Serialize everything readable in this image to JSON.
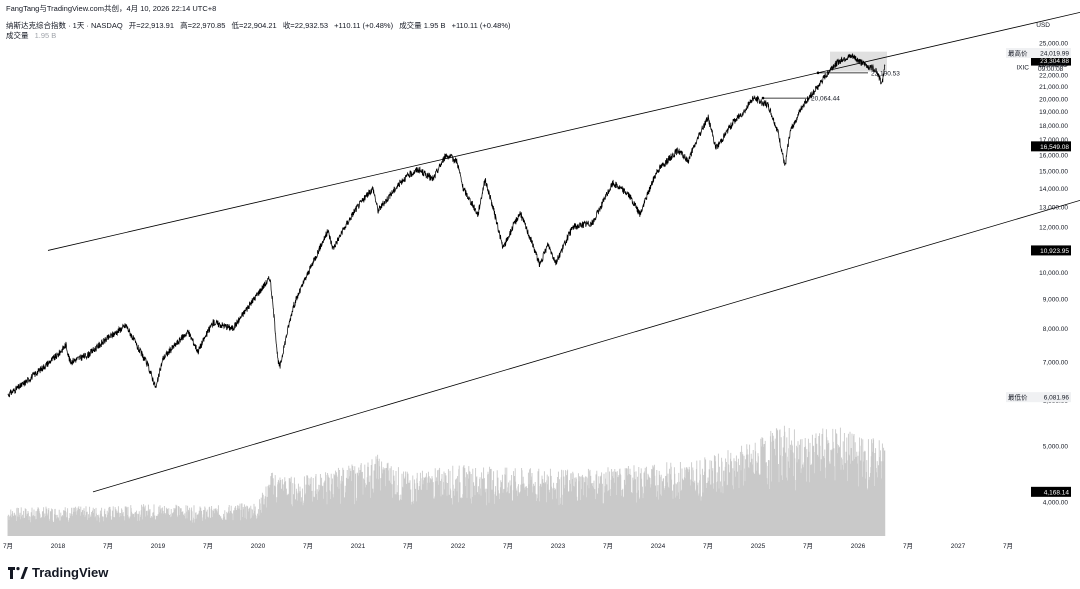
{
  "header": {
    "credit": "FangTang与TradingView.com共创，4月 10, 2026 22:14 UTC+8",
    "symbol_line": "纳斯达克综合指数 · 1天 · NASDAQ",
    "open": "开=22,913.91",
    "high": "高=22,970.85",
    "low": "低=22,904.21",
    "close": "收=22,932.53",
    "change": "+110.11 (+0.48%)",
    "volume_label": "成交量 1.95 B",
    "volume_change": "+110.11 (+0.48%)",
    "vol_row_label": "成交量",
    "vol_row_value": "1.95 B"
  },
  "brand": {
    "name": "TradingView"
  },
  "colors": {
    "price": "#000000",
    "volume": "#c9c9c9",
    "label_bg": "#000000",
    "highlight_box": "#e0e0e0"
  },
  "chart_data": {
    "type": "line",
    "currency": "USD",
    "symbol": "IXIC",
    "ylim": [
      3800,
      25300
    ],
    "y_scale": "log",
    "yticks": [
      4000,
      5000,
      6000,
      7000,
      8000,
      9000,
      10000,
      11000,
      12000,
      13000,
      14000,
      15000,
      16000,
      17000,
      18000,
      19000,
      20000,
      21000,
      22000,
      23000,
      24000,
      25000
    ],
    "ytick_labels": [
      "4,000.00",
      "5,000.00",
      "6,000.00",
      "7,000.00",
      "8,000.00",
      "9,000.00",
      "10,000.00",
      "11,000.00",
      "12,000.00",
      "13,000.00",
      "14,000.00",
      "15,000.00",
      "16,000.00",
      "17,000.00",
      "18,000.00",
      "19,000.00",
      "20,000.00",
      "21,000.00",
      "22,000.00",
      "23,000.00",
      "24,000.00",
      "25,000.00"
    ],
    "xlim": [
      2017.5,
      2027.5
    ],
    "x_ticks": [
      {
        "x": 2017.5,
        "label": "7月"
      },
      {
        "x": 2018.0,
        "label": "2018"
      },
      {
        "x": 2018.5,
        "label": "7月"
      },
      {
        "x": 2019.0,
        "label": "2019"
      },
      {
        "x": 2019.5,
        "label": "7月"
      },
      {
        "x": 2020.0,
        "label": "2020"
      },
      {
        "x": 2020.5,
        "label": "7月"
      },
      {
        "x": 2021.0,
        "label": "2021"
      },
      {
        "x": 2021.5,
        "label": "7月"
      },
      {
        "x": 2022.0,
        "label": "2022"
      },
      {
        "x": 2022.5,
        "label": "7月"
      },
      {
        "x": 2023.0,
        "label": "2023"
      },
      {
        "x": 2023.5,
        "label": "7月"
      },
      {
        "x": 2024.0,
        "label": "2024"
      },
      {
        "x": 2024.5,
        "label": "7月"
      },
      {
        "x": 2025.0,
        "label": "2025"
      },
      {
        "x": 2025.5,
        "label": "7月"
      },
      {
        "x": 2026.0,
        "label": "2026"
      },
      {
        "x": 2026.5,
        "label": "7月"
      },
      {
        "x": 2027.0,
        "label": "2027"
      },
      {
        "x": 2027.5,
        "label": "7月"
      }
    ],
    "series": [
      {
        "points": [
          [
            2017.5,
            6140
          ],
          [
            2017.65,
            6400
          ],
          [
            2017.85,
            6850
          ],
          [
            2018.0,
            7200
          ],
          [
            2018.08,
            7500
          ],
          [
            2018.12,
            7000
          ],
          [
            2018.3,
            7200
          ],
          [
            2018.5,
            7700
          ],
          [
            2018.68,
            8100
          ],
          [
            2018.8,
            7400
          ],
          [
            2018.9,
            6900
          ],
          [
            2018.98,
            6300
          ],
          [
            2019.05,
            7100
          ],
          [
            2019.3,
            7900
          ],
          [
            2019.4,
            7300
          ],
          [
            2019.55,
            8200
          ],
          [
            2019.75,
            8000
          ],
          [
            2019.95,
            8950
          ],
          [
            2020.12,
            9800
          ],
          [
            2020.2,
            7000
          ],
          [
            2020.22,
            6860
          ],
          [
            2020.35,
            8700
          ],
          [
            2020.55,
            10400
          ],
          [
            2020.7,
            11800
          ],
          [
            2020.75,
            11000
          ],
          [
            2020.98,
            12900
          ],
          [
            2021.15,
            14000
          ],
          [
            2021.2,
            12800
          ],
          [
            2021.45,
            14500
          ],
          [
            2021.6,
            15100
          ],
          [
            2021.75,
            14500
          ],
          [
            2021.88,
            16000
          ],
          [
            2021.99,
            15600
          ],
          [
            2022.05,
            14000
          ],
          [
            2022.2,
            12600
          ],
          [
            2022.27,
            14500
          ],
          [
            2022.45,
            11000
          ],
          [
            2022.62,
            12700
          ],
          [
            2022.72,
            11500
          ],
          [
            2022.82,
            10300
          ],
          [
            2022.9,
            11200
          ],
          [
            2022.98,
            10400
          ],
          [
            2023.15,
            12000
          ],
          [
            2023.35,
            12200
          ],
          [
            2023.55,
            14300
          ],
          [
            2023.7,
            13700
          ],
          [
            2023.82,
            12600
          ],
          [
            2023.99,
            15000
          ],
          [
            2024.2,
            16300
          ],
          [
            2024.3,
            15600
          ],
          [
            2024.5,
            18600
          ],
          [
            2024.58,
            16400
          ],
          [
            2024.75,
            18200
          ],
          [
            2024.88,
            19200
          ],
          [
            2024.95,
            20100
          ],
          [
            2025.1,
            19500
          ],
          [
            2025.2,
            17500
          ],
          [
            2025.27,
            15200
          ],
          [
            2025.32,
            17500
          ],
          [
            2025.45,
            19500
          ],
          [
            2025.6,
            21000
          ],
          [
            2025.75,
            22800
          ],
          [
            2025.85,
            23500
          ],
          [
            2025.95,
            23700
          ],
          [
            2026.05,
            23000
          ],
          [
            2026.18,
            22500
          ],
          [
            2026.24,
            21200
          ],
          [
            2026.27,
            22932
          ]
        ]
      }
    ],
    "volume": {
      "unit": "B",
      "points": [
        [
          2017.5,
          1.9
        ],
        [
          2018.0,
          2.0
        ],
        [
          2018.5,
          2.0
        ],
        [
          2019.0,
          2.2
        ],
        [
          2019.5,
          2.0
        ],
        [
          2020.0,
          2.3
        ],
        [
          2020.15,
          4.5
        ],
        [
          2020.3,
          4.0
        ],
        [
          2020.5,
          4.1
        ],
        [
          2021.0,
          4.9
        ],
        [
          2021.2,
          5.5
        ],
        [
          2021.5,
          4.3
        ],
        [
          2022.0,
          4.8
        ],
        [
          2022.5,
          4.6
        ],
        [
          2023.0,
          4.5
        ],
        [
          2023.5,
          4.6
        ],
        [
          2024.0,
          4.9
        ],
        [
          2024.5,
          5.3
        ],
        [
          2025.0,
          6.5
        ],
        [
          2025.25,
          7.6
        ],
        [
          2025.5,
          6.6
        ],
        [
          2025.75,
          7.6
        ],
        [
          2026.0,
          6.8
        ],
        [
          2026.27,
          6.5
        ]
      ]
    },
    "channel_lines": [
      {
        "name": "upper",
        "from": [
          2017.9,
          10923.95
        ],
        "to": [
          2029.0,
          30350
        ]
      },
      {
        "name": "lower",
        "from": [
          2018.35,
          4168.14
        ],
        "to": [
          2030.05,
          16549.08
        ]
      }
    ],
    "horizontal_levels": [
      {
        "value": 20064.44,
        "from_x": 2025.05,
        "to_x": 2025.5,
        "label": "20,064.44"
      },
      {
        "value": 22190.53,
        "from_x": 2025.6,
        "to_x": 2026.1,
        "label": "22,190.53"
      }
    ],
    "highlight_range": {
      "x": [
        2025.72,
        2026.29
      ],
      "y": [
        22300,
        24150
      ]
    },
    "price_labels": [
      {
        "kind": "box",
        "value": 23304.88,
        "text": "23,304.88"
      },
      {
        "kind": "box",
        "value": 16549.08,
        "text": "16,549.08"
      },
      {
        "kind": "box",
        "value": 10923.95,
        "text": "10,923.95"
      },
      {
        "kind": "box",
        "value": 4168.14,
        "text": "4,168.14"
      },
      {
        "kind": "high",
        "value": 24019.99,
        "caption": "最高价",
        "text": "24,019.99"
      },
      {
        "kind": "low",
        "value": 6081.96,
        "caption": "最低价",
        "text": "6,081.96"
      },
      {
        "kind": "plain",
        "value": 22932.53,
        "text": "22,932.53"
      },
      {
        "kind": "plain",
        "value": 22600,
        "text": "09:00:08"
      }
    ]
  }
}
